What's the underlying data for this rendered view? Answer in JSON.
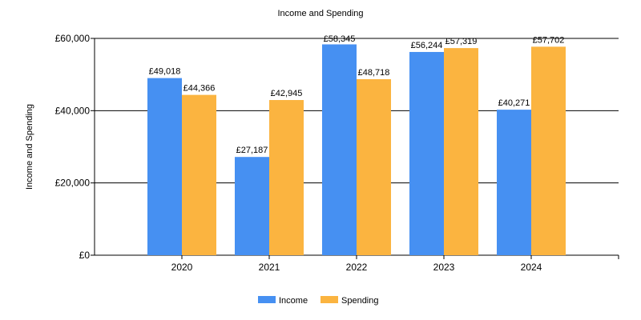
{
  "chart_data": {
    "type": "bar",
    "title": "Income and Spending",
    "xlabel": "",
    "ylabel": "Income and Spending",
    "categories": [
      "2020",
      "2021",
      "2022",
      "2023",
      "2024"
    ],
    "series": [
      {
        "name": "Income",
        "color": "#4690f2",
        "values": [
          49018,
          27187,
          58345,
          56244,
          40271
        ],
        "labels": [
          "£49,018",
          "£27,187",
          "£58,345",
          "£56,244",
          "£40,271"
        ]
      },
      {
        "name": "Spending",
        "color": "#fbb440",
        "values": [
          44366,
          42945,
          48718,
          57319,
          57702
        ],
        "labels": [
          "£44,366",
          "£42,945",
          "£48,718",
          "£57,319",
          "£57,702"
        ]
      }
    ],
    "ylim": [
      0,
      60000
    ],
    "yticks": [
      0,
      20000,
      40000,
      60000
    ],
    "ytick_labels": [
      "£0",
      "£20,000",
      "£40,000",
      "£60,000"
    ],
    "grid": true,
    "legend_position": "bottom"
  }
}
